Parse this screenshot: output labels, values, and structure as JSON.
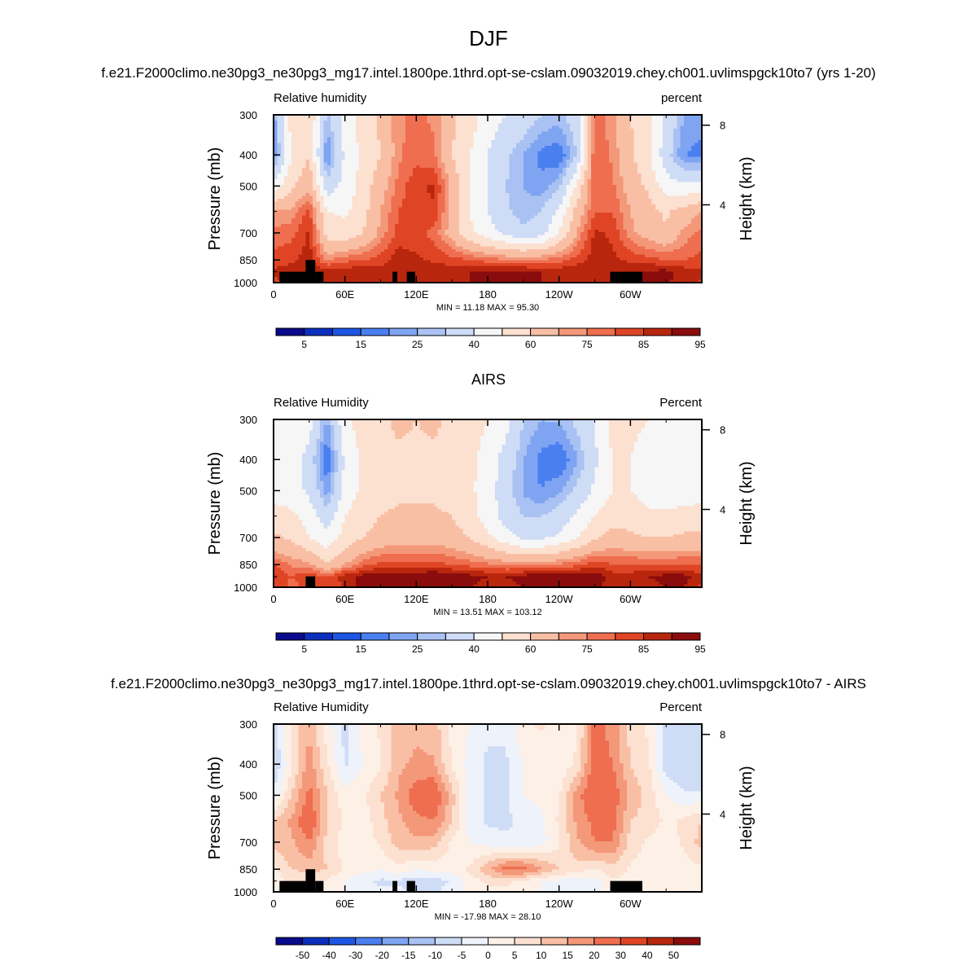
{
  "figure": {
    "title": "DJF",
    "panel1_title": "f.e21.F2000climo.ne30pg3_ne30pg3_mg17.intel.1800pe.1thrd.opt-se-cslam.09032019.chey.ch001.uvlimspgck10to7 (yrs 1-20)",
    "panel2_title": "AIRS",
    "panel3_title": "f.e21.F2000climo.ne30pg3_ne30pg3_mg17.intel.1800pe.1thrd.opt-se-cslam.09032019.chey.ch001.uvlimspgck10to7 - AIRS"
  },
  "colors": {
    "field_palette": [
      "#0a0a8c",
      "#0c2fbe",
      "#1d56e4",
      "#4a7ff0",
      "#7fa4f2",
      "#a9c2f3",
      "#cedcf6",
      "#f6f6f6",
      "#fce0d0",
      "#f9bfa5",
      "#f4987a",
      "#ee6e4f",
      "#df4524",
      "#b8260e",
      "#8a0c0c"
    ],
    "diff_palette": [
      "#0a0a8c",
      "#0c2fbe",
      "#1d56e4",
      "#4a7ff0",
      "#7fa4f2",
      "#a9c2f3",
      "#cedcf6",
      "#eef2fa",
      "#fdf0e6",
      "#fce0d0",
      "#f9bfa5",
      "#f4987a",
      "#ee6e4f",
      "#df4524",
      "#b8260e",
      "#8a0c0c"
    ],
    "topography": "#000000"
  },
  "chart_data": [
    {
      "type": "heatmap",
      "left_label": "Relative humidity",
      "right_label": "percent",
      "ylabel": "Pressure (mb)",
      "ylabel_right": "Height (km)",
      "x_ticks": [
        "0",
        "60E",
        "120E",
        "180",
        "120W",
        "60W"
      ],
      "x_tick_values": [
        0,
        60,
        120,
        180,
        240,
        300
      ],
      "xlim": [
        0,
        360
      ],
      "y_ticks": [
        "300",
        "400",
        "500",
        "700",
        "850",
        "1000"
      ],
      "y_tick_values": [
        300,
        400,
        500,
        700,
        850,
        1000
      ],
      "ylim": [
        1000,
        300
      ],
      "y_scale": "log",
      "height_ticks": [
        "8",
        "4"
      ],
      "height_tick_values": [
        8,
        4
      ],
      "stats": "MIN =  11.18  MAX =  95.30",
      "min": 11.18,
      "max": 95.3,
      "colorbar_labels": [
        "5",
        "15",
        "25",
        "40",
        "60",
        "75",
        "85",
        "95"
      ],
      "levels": [
        5,
        10,
        15,
        20,
        25,
        30,
        40,
        50,
        60,
        70,
        75,
        80,
        85,
        90,
        95
      ],
      "lon": [
        0,
        15,
        30,
        45,
        60,
        75,
        90,
        105,
        120,
        135,
        150,
        165,
        180,
        195,
        210,
        225,
        240,
        255,
        270,
        285,
        300,
        315,
        330,
        345,
        360
      ],
      "pressure": [
        300,
        400,
        500,
        600,
        700,
        850,
        925,
        1000
      ],
      "values": [
        [
          22,
          55,
          60,
          28,
          45,
          55,
          62,
          74,
          76,
          74,
          62,
          55,
          45,
          40,
          35,
          30,
          28,
          35,
          78,
          72,
          60,
          55,
          38,
          25,
          22
        ],
        [
          20,
          50,
          60,
          18,
          42,
          52,
          60,
          74,
          78,
          76,
          60,
          50,
          40,
          32,
          25,
          18,
          15,
          30,
          80,
          74,
          62,
          52,
          34,
          20,
          18
        ],
        [
          45,
          58,
          68,
          34,
          44,
          54,
          66,
          77,
          84,
          86,
          68,
          50,
          40,
          30,
          25,
          22,
          28,
          52,
          80,
          76,
          66,
          58,
          45,
          42,
          45
        ],
        [
          70,
          72,
          82,
          50,
          48,
          56,
          70,
          80,
          84,
          84,
          66,
          50,
          40,
          32,
          26,
          30,
          42,
          64,
          80,
          80,
          70,
          64,
          58,
          65,
          70
        ],
        [
          77,
          78,
          86,
          56,
          54,
          60,
          72,
          82,
          82,
          78,
          66,
          52,
          44,
          38,
          32,
          36,
          50,
          70,
          86,
          84,
          72,
          66,
          62,
          72,
          77
        ],
        [
          82,
          84,
          88,
          74,
          78,
          80,
          82,
          88,
          86,
          84,
          82,
          80,
          78,
          76,
          76,
          76,
          78,
          82,
          88,
          86,
          84,
          82,
          80,
          80,
          82
        ],
        [
          86,
          88,
          88,
          88,
          89,
          89,
          89,
          88,
          88,
          88,
          89,
          90,
          91,
          91,
          91,
          90,
          89,
          90,
          88,
          88,
          90,
          91,
          92,
          88,
          86
        ],
        [
          84,
          86,
          86,
          88,
          89,
          89,
          89,
          88,
          88,
          88,
          89,
          90,
          90,
          90,
          90,
          90,
          88,
          88,
          86,
          86,
          90,
          91,
          91,
          87,
          84
        ]
      ],
      "topography": [
        {
          "lon_start": 5,
          "lon_end": 27,
          "top_p": 925
        },
        {
          "lon_start": 27,
          "lon_end": 35,
          "top_p": 850
        },
        {
          "lon_start": 35,
          "lon_end": 42,
          "top_p": 925
        },
        {
          "lon_start": 100,
          "lon_end": 104,
          "top_p": 925
        },
        {
          "lon_start": 112,
          "lon_end": 119,
          "top_p": 925
        },
        {
          "lon_start": 283,
          "lon_end": 310,
          "top_p": 925
        }
      ]
    },
    {
      "type": "heatmap",
      "left_label": "Relative Humidity",
      "right_label": "Percent",
      "ylabel": "Pressure (mb)",
      "ylabel_right": "Height (km)",
      "x_ticks": [
        "0",
        "60E",
        "120E",
        "180",
        "120W",
        "60W"
      ],
      "x_tick_values": [
        0,
        60,
        120,
        180,
        240,
        300
      ],
      "xlim": [
        0,
        360
      ],
      "y_ticks": [
        "300",
        "400",
        "500",
        "700",
        "850",
        "1000"
      ],
      "y_tick_values": [
        300,
        400,
        500,
        700,
        850,
        1000
      ],
      "ylim": [
        1000,
        300
      ],
      "y_scale": "log",
      "height_ticks": [
        "8",
        "4"
      ],
      "height_tick_values": [
        8,
        4
      ],
      "stats": "MIN =  13.51  MAX = 103.12",
      "min": 13.51,
      "max": 103.12,
      "colorbar_labels": [
        "5",
        "15",
        "25",
        "40",
        "60",
        "75",
        "85",
        "95"
      ],
      "levels": [
        5,
        10,
        15,
        20,
        25,
        30,
        40,
        50,
        60,
        70,
        75,
        80,
        85,
        90,
        95
      ],
      "lon": [
        0,
        15,
        30,
        45,
        60,
        75,
        90,
        105,
        120,
        135,
        150,
        165,
        180,
        195,
        210,
        225,
        240,
        255,
        270,
        285,
        300,
        315,
        330,
        345,
        360
      ],
      "pressure": [
        300,
        400,
        500,
        600,
        700,
        850,
        925,
        1000
      ],
      "values": [
        [
          48,
          50,
          44,
          24,
          48,
          54,
          58,
          62,
          60,
          62,
          58,
          55,
          50,
          44,
          30,
          25,
          26,
          32,
          40,
          54,
          52,
          50,
          46,
          42,
          48
        ],
        [
          46,
          46,
          36,
          14,
          42,
          52,
          56,
          58,
          58,
          58,
          55,
          52,
          46,
          36,
          25,
          18,
          15,
          24,
          38,
          50,
          50,
          46,
          42,
          40,
          46
        ],
        [
          45,
          45,
          38,
          22,
          44,
          52,
          56,
          58,
          58,
          58,
          55,
          52,
          45,
          34,
          24,
          20,
          24,
          32,
          42,
          50,
          50,
          46,
          44,
          44,
          45
        ],
        [
          55,
          52,
          46,
          34,
          50,
          56,
          60,
          62,
          62,
          62,
          60,
          54,
          46,
          36,
          30,
          30,
          34,
          42,
          50,
          56,
          56,
          52,
          52,
          54,
          55
        ],
        [
          62,
          58,
          50,
          44,
          54,
          60,
          64,
          66,
          66,
          66,
          64,
          60,
          52,
          44,
          38,
          38,
          42,
          50,
          58,
          64,
          62,
          60,
          60,
          62,
          62
        ],
        [
          80,
          74,
          72,
          60,
          70,
          78,
          82,
          82,
          82,
          82,
          80,
          78,
          76,
          74,
          74,
          74,
          76,
          78,
          84,
          80,
          80,
          80,
          80,
          80,
          80
        ],
        [
          86,
          80,
          84,
          80,
          88,
          92,
          94,
          92,
          94,
          96,
          94,
          92,
          90,
          90,
          92,
          96,
          96,
          96,
          94,
          88,
          88,
          90,
          92,
          92,
          86
        ],
        [
          84,
          78,
          82,
          80,
          86,
          92,
          92,
          92,
          92,
          94,
          92,
          90,
          88,
          88,
          90,
          96,
          98,
          96,
          92,
          86,
          86,
          88,
          90,
          90,
          84
        ]
      ],
      "topography": [
        {
          "lon_start": 27,
          "lon_end": 35,
          "top_p": 925
        }
      ]
    },
    {
      "type": "heatmap",
      "left_label": "Relative Humidity",
      "right_label": "Percent",
      "ylabel": "Pressure (mb)",
      "ylabel_right": "Height (km)",
      "x_ticks": [
        "0",
        "60E",
        "120E",
        "180",
        "120W",
        "60W"
      ],
      "x_tick_values": [
        0,
        60,
        120,
        180,
        240,
        300
      ],
      "xlim": [
        0,
        360
      ],
      "y_ticks": [
        "300",
        "400",
        "500",
        "700",
        "850",
        "1000"
      ],
      "y_tick_values": [
        300,
        400,
        500,
        700,
        850,
        1000
      ],
      "ylim": [
        1000,
        300
      ],
      "y_scale": "log",
      "height_ticks": [
        "8",
        "4"
      ],
      "height_tick_values": [
        8,
        4
      ],
      "stats": "MIN = -17.98  MAX =  28.10",
      "min": -17.98,
      "max": 28.1,
      "colorbar_labels": [
        "-50",
        "-40",
        "-30",
        "-20",
        "-15",
        "-10",
        "-5",
        "0",
        "5",
        "10",
        "15",
        "20",
        "30",
        "40",
        "50"
      ],
      "levels": [
        -50,
        -40,
        -30,
        -20,
        -15,
        -10,
        -5,
        0,
        5,
        10,
        15,
        20,
        30,
        40,
        50
      ],
      "lon": [
        0,
        15,
        30,
        45,
        60,
        75,
        90,
        105,
        120,
        135,
        150,
        165,
        180,
        195,
        210,
        225,
        240,
        255,
        270,
        285,
        300,
        315,
        330,
        345,
        360
      ],
      "pressure": [
        300,
        400,
        500,
        600,
        700,
        850,
        925,
        1000
      ],
      "values": [
        [
          -8,
          6,
          14,
          2,
          -6,
          2,
          6,
          12,
          14,
          12,
          4,
          0,
          -4,
          -4,
          4,
          6,
          2,
          4,
          22,
          18,
          8,
          4,
          -6,
          -10,
          -8
        ],
        [
          -10,
          4,
          18,
          6,
          -6,
          0,
          4,
          14,
          16,
          16,
          4,
          -2,
          -6,
          -6,
          0,
          0,
          2,
          6,
          24,
          20,
          10,
          6,
          -8,
          -10,
          -10
        ],
        [
          -4,
          10,
          22,
          10,
          2,
          4,
          10,
          16,
          24,
          26,
          12,
          -2,
          -6,
          -6,
          0,
          2,
          4,
          18,
          26,
          24,
          14,
          8,
          0,
          -4,
          -4
        ],
        [
          10,
          16,
          26,
          10,
          4,
          2,
          8,
          14,
          18,
          20,
          10,
          -2,
          -6,
          -6,
          -4,
          -2,
          6,
          16,
          22,
          22,
          10,
          8,
          4,
          6,
          10
        ],
        [
          12,
          14,
          20,
          8,
          2,
          2,
          6,
          12,
          14,
          12,
          4,
          0,
          -2,
          -4,
          -4,
          -2,
          4,
          14,
          20,
          20,
          8,
          4,
          2,
          6,
          12
        ],
        [
          4,
          10,
          12,
          10,
          4,
          2,
          0,
          4,
          0,
          2,
          2,
          6,
          14,
          22,
          22,
          16,
          10,
          8,
          4,
          8,
          4,
          2,
          2,
          2,
          4
        ],
        [
          2,
          6,
          6,
          4,
          0,
          -4,
          -6,
          -6,
          -8,
          -8,
          -4,
          2,
          6,
          6,
          4,
          0,
          -2,
          -2,
          -2,
          4,
          4,
          4,
          2,
          2,
          2
        ],
        [
          2,
          6,
          6,
          4,
          0,
          -2,
          -4,
          -4,
          -6,
          -6,
          -2,
          2,
          4,
          4,
          2,
          0,
          -2,
          -2,
          -2,
          2,
          2,
          2,
          2,
          2,
          2
        ]
      ],
      "topography": [
        {
          "lon_start": 5,
          "lon_end": 27,
          "top_p": 925
        },
        {
          "lon_start": 27,
          "lon_end": 35,
          "top_p": 850
        },
        {
          "lon_start": 35,
          "lon_end": 42,
          "top_p": 925
        },
        {
          "lon_start": 100,
          "lon_end": 104,
          "top_p": 925
        },
        {
          "lon_start": 112,
          "lon_end": 119,
          "top_p": 925
        },
        {
          "lon_start": 283,
          "lon_end": 310,
          "top_p": 925
        }
      ]
    }
  ]
}
